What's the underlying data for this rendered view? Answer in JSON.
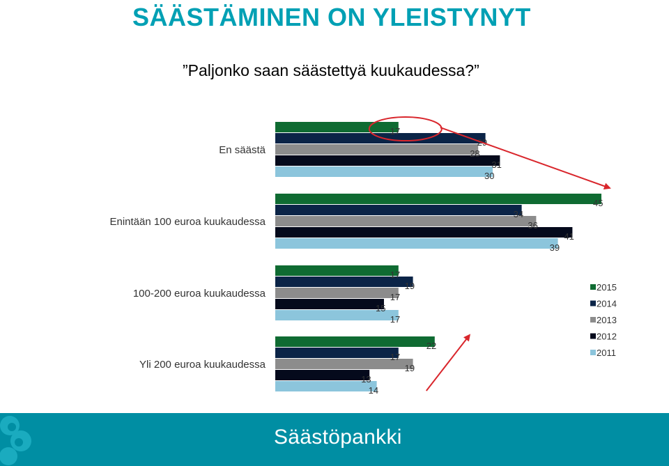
{
  "title": "SÄÄSTÄMINEN ON YLEISTYNYT",
  "subtitle": "”Paljonko saan säästettyä kuukaudessa?”",
  "brand": "Säästöpankki",
  "colors": {
    "title": "#00a0b4",
    "footer": "#008ea3",
    "annotation": "#d9262c"
  },
  "chart_data": {
    "type": "bar",
    "orientation": "horizontal",
    "categories": [
      "En säästä",
      "Enintään 100 euroa kuukaudessa",
      "100-200 euroa kuukaudessa",
      "Yli 200 euroa kuukaudessa"
    ],
    "series": [
      {
        "name": "2015",
        "color": "#0f6b32",
        "values": [
          17,
          45,
          17,
          22
        ]
      },
      {
        "name": "2014",
        "color": "#0b2447",
        "values": [
          29,
          34,
          19,
          17
        ]
      },
      {
        "name": "2013",
        "color": "#8c8c8c",
        "values": [
          28,
          36,
          17,
          19
        ]
      },
      {
        "name": "2012",
        "color": "#050a1c",
        "values": [
          31,
          41,
          15,
          13
        ]
      },
      {
        "name": "2011",
        "color": "#8cc5dc",
        "values": [
          30,
          39,
          17,
          14
        ]
      }
    ],
    "xlim": [
      0,
      45
    ],
    "grid": false,
    "legend_position": "right",
    "data_labels": true
  }
}
